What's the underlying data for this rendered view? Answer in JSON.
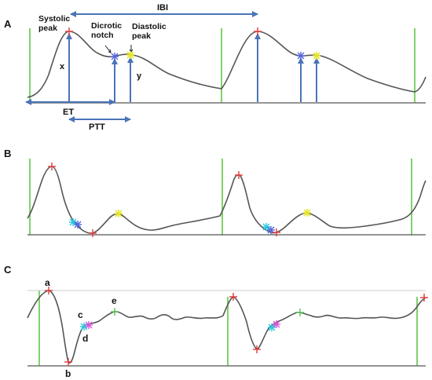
{
  "panels": {
    "a": {
      "letter": "A",
      "labels": {
        "systolic_peak": [
          "Systolic",
          "peak"
        ],
        "dicrotic_notch": [
          "Dicrotic",
          "notch"
        ],
        "diastolic_peak": [
          "Diastolic",
          "peak"
        ],
        "ibi": "IBI",
        "x": "x",
        "y": "y",
        "et": "ET",
        "ptt": "PTT"
      }
    },
    "b": {
      "letter": "B"
    },
    "c": {
      "letter": "C",
      "point_labels": {
        "a": "a",
        "b": "b",
        "c": "c",
        "d": "d",
        "e": "e"
      }
    }
  },
  "colors": {
    "signal": "#555555",
    "baseline": "#707070",
    "beat_marker": "#7ed36b",
    "arrow": "#4a74b8",
    "systolic_marker": "#e23a3a",
    "notch_marker": "#5566dd",
    "diastolic_marker": "#e6e62a",
    "onset_marker": "#25c9dd",
    "c_marker": "#d955d9",
    "e_marker": "#55c455"
  }
}
